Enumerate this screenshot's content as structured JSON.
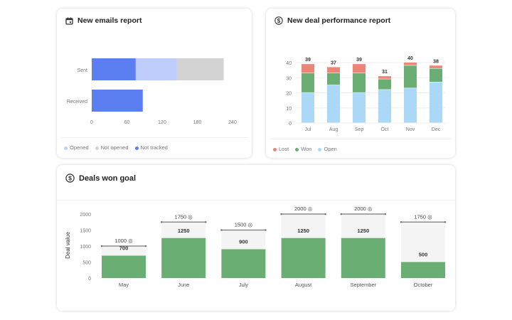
{
  "chart_data": [
    {
      "type": "bar",
      "orientation": "horizontal",
      "stacked": true,
      "title": "New emails report",
      "categories": [
        "Sent",
        "Received"
      ],
      "series": [
        {
          "name": "Not tracked",
          "color": "#5b7ff0",
          "values": [
            75,
            87
          ]
        },
        {
          "name": "Opened",
          "color": "#bfcdfc",
          "values": [
            70,
            0
          ]
        },
        {
          "name": "Not opened",
          "color": "#d3d3d3",
          "values": [
            80,
            0
          ]
        }
      ],
      "xticks": [
        0,
        60,
        120,
        180,
        240
      ],
      "xlim": [
        0,
        240
      ],
      "legend": [
        "Opened",
        "Not opened",
        "Not tracked"
      ],
      "legend_position": "bottom",
      "icon": "calendar-icon"
    },
    {
      "type": "bar",
      "stacked": true,
      "title": "New deal performance report",
      "categories": [
        "Jul",
        "Aug",
        "Sep",
        "Oct",
        "Nov",
        "Dec"
      ],
      "series": [
        {
          "name": "Open",
          "color": "#aad8f6",
          "values": [
            20,
            25,
            20,
            22,
            23,
            27
          ]
        },
        {
          "name": "Won",
          "color": "#6aae74",
          "values": [
            13,
            8,
            13,
            7,
            15,
            9
          ]
        },
        {
          "name": "Lost",
          "color": "#ec8477",
          "values": [
            6,
            4,
            6,
            2,
            2,
            2
          ]
        }
      ],
      "totals": [
        39,
        37,
        39,
        31,
        40,
        38
      ],
      "yticks": [
        0,
        10,
        20,
        30,
        40
      ],
      "ylim": [
        0,
        40
      ],
      "grid": true,
      "legend": [
        "Lost",
        "Won",
        "Open"
      ],
      "legend_position": "bottom",
      "icon": "dollar-icon"
    },
    {
      "type": "bar",
      "title": "Deals won goal",
      "ylabel": "Deal value",
      "categories": [
        "May",
        "June",
        "July",
        "August",
        "September",
        "October"
      ],
      "values": [
        700,
        1250,
        900,
        1250,
        1250,
        500
      ],
      "goals": [
        1000,
        1750,
        1500,
        2000,
        2000,
        1750
      ],
      "goal_labels": [
        "1000",
        "1750",
        "1500",
        "2000",
        "2000",
        "1750"
      ],
      "yticks": [
        0,
        500,
        1000,
        1500,
        2000
      ],
      "ylim": [
        0,
        2000
      ],
      "bar_color": "#6aae74",
      "goal_bg": "#f4f4f4",
      "icon": "dollar-icon"
    }
  ]
}
